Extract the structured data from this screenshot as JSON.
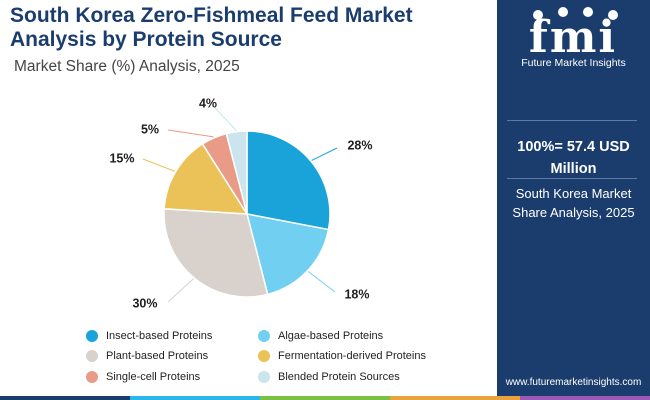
{
  "header": {
    "title": "South Korea Zero-Fishmeal Feed Market Analysis by Protein Source",
    "subtitle": "Market Share (%) Analysis, 2025"
  },
  "chart_data": {
    "type": "pie",
    "title": "South Korea Zero-Fishmeal Feed Market Analysis by Protein Source",
    "subtitle": "Market Share (%) Analysis, 2025",
    "unit": "%",
    "slices": [
      {
        "label": "Insect-based Proteins",
        "value": 28,
        "display": "28%",
        "color": "#1aa3d9"
      },
      {
        "label": "Algae-based Proteins",
        "value": 18,
        "display": "18%",
        "color": "#71d0f2"
      },
      {
        "label": "Plant-based Proteins",
        "value": 30,
        "display": "30%",
        "color": "#d9d1cb"
      },
      {
        "label": "Fermentation-derived Proteins",
        "value": 15,
        "display": "15%",
        "color": "#ebc257"
      },
      {
        "label": "Single-cell Proteins",
        "value": 5,
        "display": "5%",
        "color": "#ea9b87"
      },
      {
        "label": "Blended Protein Sources",
        "value": 4,
        "display": "4%",
        "color": "#cbe4ee"
      }
    ],
    "legend_placement": "bottom"
  },
  "sidebar": {
    "logo_letters": "fmi",
    "logo_text": "Future Market Insights",
    "total": "100%= 57.4 USD Million",
    "description": "South Korea Market Share Analysis, 2025",
    "website": "www.futuremarketinsights.com"
  },
  "colors": {
    "sidebar_bg": "#1b3d6e",
    "title": "#1b3d6e",
    "footer": [
      "#1b3d6e",
      "#29b6e8",
      "#7ac143",
      "#e8a33d",
      "#9b59b6"
    ]
  }
}
